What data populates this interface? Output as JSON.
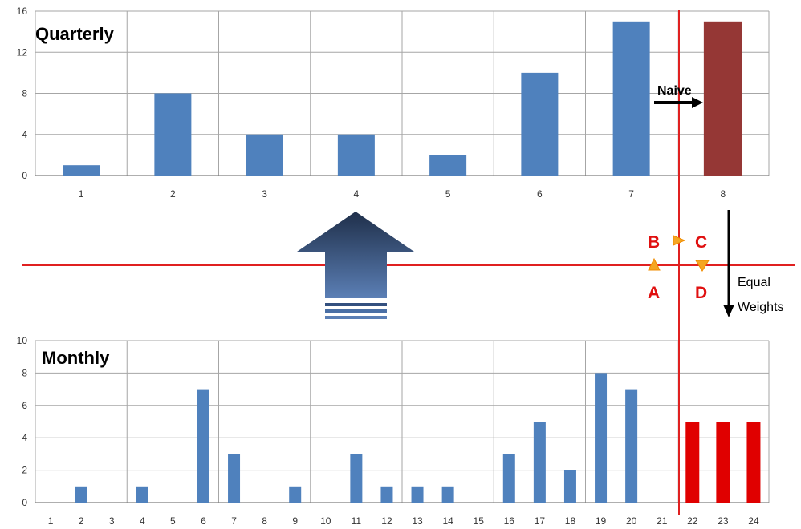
{
  "chart_data": [
    {
      "type": "bar",
      "title": "Quarterly",
      "categories": [
        "1",
        "2",
        "3",
        "4",
        "5",
        "6",
        "7",
        "8"
      ],
      "values": [
        1,
        8,
        4,
        4,
        2,
        10,
        15,
        15
      ],
      "bar_colors": [
        "#4f81bd",
        "#4f81bd",
        "#4f81bd",
        "#4f81bd",
        "#4f81bd",
        "#4f81bd",
        "#4f81bd",
        "#953735"
      ],
      "ylim": [
        0,
        16
      ],
      "yticks": [
        0,
        4,
        8,
        12,
        16
      ],
      "grid": true
    },
    {
      "type": "bar",
      "title": "Monthly",
      "categories": [
        "1",
        "2",
        "3",
        "4",
        "5",
        "6",
        "7",
        "8",
        "9",
        "10",
        "11",
        "12",
        "13",
        "14",
        "15",
        "16",
        "17",
        "18",
        "19",
        "20",
        "21",
        "22",
        "23",
        "24"
      ],
      "values": [
        0,
        1,
        0,
        1,
        0,
        7,
        3,
        0,
        1,
        0,
        3,
        1,
        1,
        1,
        0,
        3,
        5,
        2,
        8,
        7,
        0,
        5,
        5,
        5
      ],
      "bar_colors_default": "#4f81bd",
      "bar_colors_forecast": "#e00000",
      "forecast_categories": [
        "22",
        "23",
        "24"
      ],
      "ylim": [
        0,
        10
      ],
      "yticks": [
        0,
        2,
        4,
        6,
        8,
        10
      ],
      "grid": true
    }
  ],
  "annotations": {
    "naive_label": "Naive",
    "equal_weights_line1": "Equal",
    "equal_weights_line2": "Weights",
    "point_a": "A",
    "point_b": "B",
    "point_c": "C",
    "point_d": "D"
  },
  "colors": {
    "divider_red": "#e02020",
    "marker_fill": "#f5a623",
    "grid": "#a6a6a6",
    "arrow_dark": "#1f3864",
    "arrow_light": "#4a6fa5"
  }
}
